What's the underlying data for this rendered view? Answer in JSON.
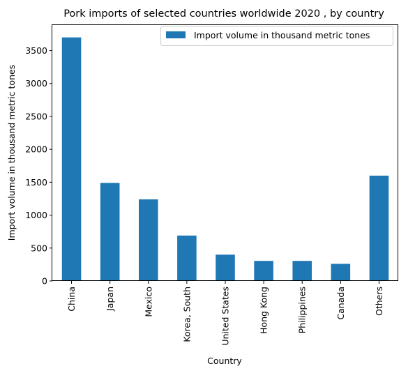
{
  "chart_data": {
    "type": "bar",
    "title": "Pork imports of selected countries worldwide 2020 , by country",
    "xlabel": "Country",
    "ylabel": "Import volume in thousand metric tones",
    "categories": [
      "China",
      "Japan",
      "Mexico",
      "Korea, South",
      "United States",
      "Hong Kong",
      "Philippines",
      "Canada",
      "Others"
    ],
    "series": [
      {
        "name": "Import volume in thousand metric tones",
        "values": [
          3700,
          1490,
          1240,
          690,
          400,
          305,
          305,
          260,
          1600
        ],
        "color": "#1f77b4"
      }
    ],
    "ylim": [
      0,
      3887
    ],
    "yticks": [
      "0",
      "500",
      "1000",
      "1500",
      "2000",
      "2500",
      "3000",
      "3500"
    ],
    "legend_position": "top-right",
    "grid": false
  }
}
